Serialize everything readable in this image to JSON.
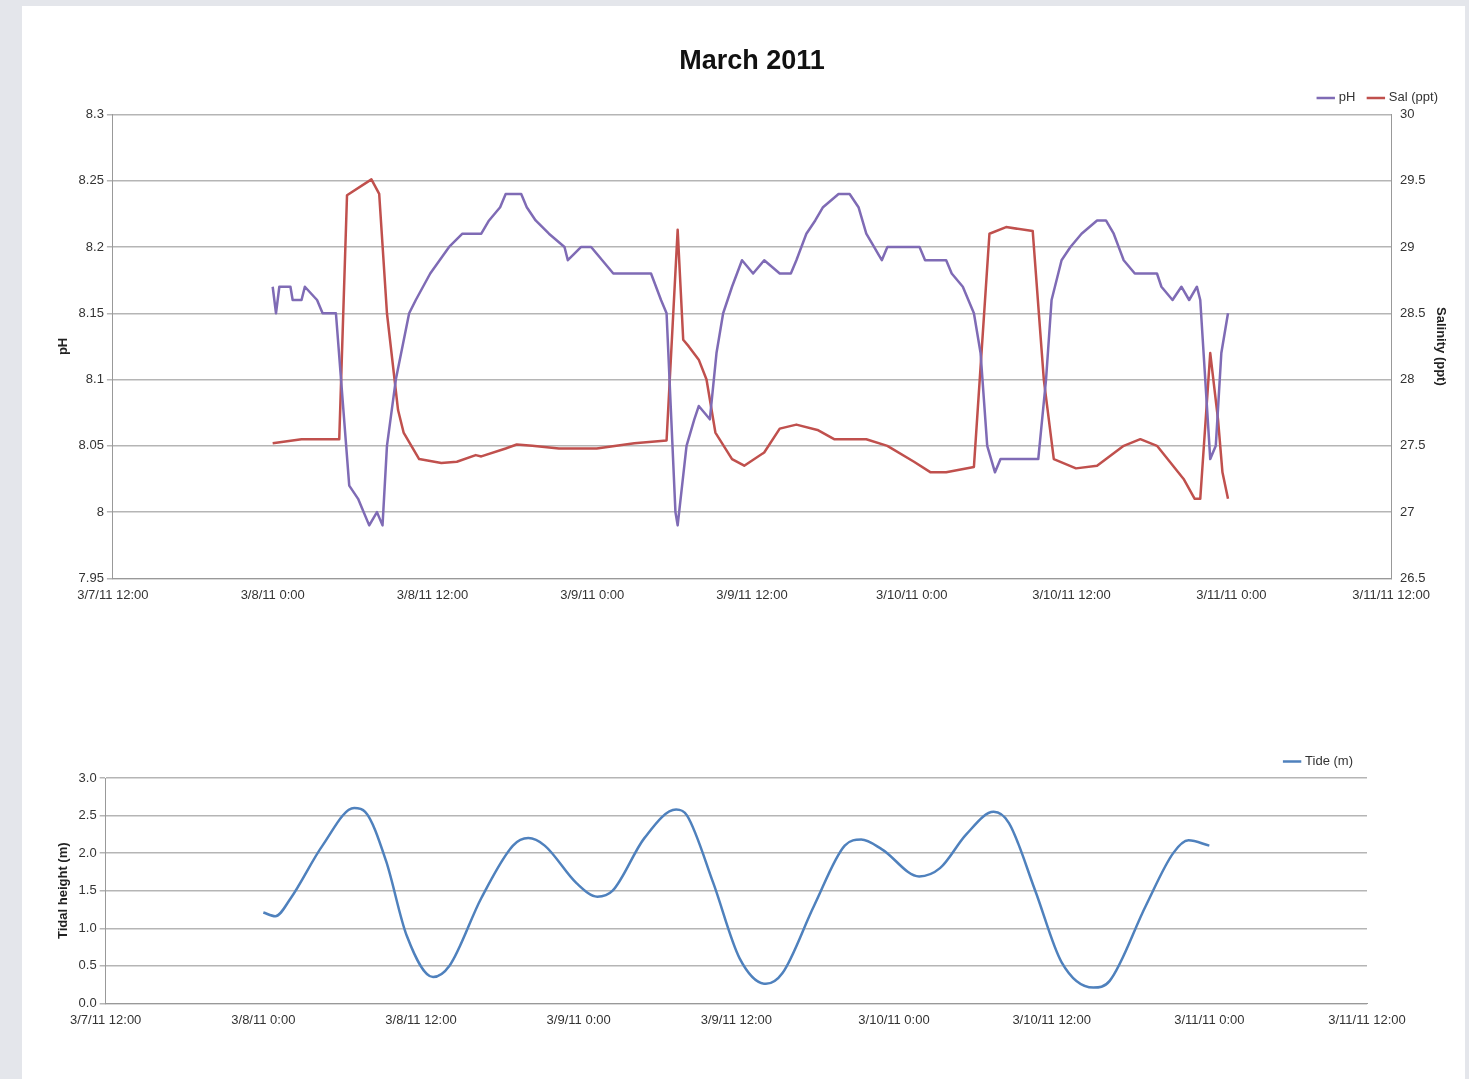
{
  "chart_data": [
    {
      "type": "line",
      "title": "March 2011",
      "ylabel": "pH",
      "y2label": "Salinity (ppt)",
      "legend": "top right",
      "grid": "y",
      "xlim": [
        "2011-03-07T12:00",
        "2011-03-11T12:00"
      ],
      "xticks": [
        {
          "value": "2011-03-07T12:00",
          "label": "3/7/11 12:00"
        },
        {
          "value": "2011-03-08T00:00",
          "label": "3/8/11 0:00"
        },
        {
          "value": "2011-03-08T12:00",
          "label": "3/8/11 12:00"
        },
        {
          "value": "2011-03-09T00:00",
          "label": "3/9/11 0:00"
        },
        {
          "value": "2011-03-09T12:00",
          "label": "3/9/11 12:00"
        },
        {
          "value": "2011-03-10T00:00",
          "label": "3/10/11 0:00"
        },
        {
          "value": "2011-03-10T12:00",
          "label": "3/10/11 12:00"
        },
        {
          "value": "2011-03-11T00:00",
          "label": "3/11/11 0:00"
        },
        {
          "value": "2011-03-11T12:00",
          "label": "3/11/11 12:00"
        }
      ],
      "ylim": [
        7.95,
        8.3
      ],
      "yticks": [
        7.95,
        8,
        8.05,
        8.1,
        8.15,
        8.2,
        8.25,
        8.3
      ],
      "y2lim": [
        26.5,
        30
      ],
      "y2ticks": [
        26.5,
        27,
        27.5,
        28,
        28.5,
        29,
        29.5,
        30
      ],
      "series": [
        {
          "name": "pH",
          "color": "#7f6bb5",
          "axis": "y",
          "x": [
            "2011-03-08T00:00",
            "2011-03-08T00:15",
            "2011-03-08T00:30",
            "2011-03-08T01:20",
            "2011-03-08T01:30",
            "2011-03-08T02:10",
            "2011-03-08T02:25",
            "2011-03-08T03:20",
            "2011-03-08T03:45",
            "2011-03-08T04:45",
            "2011-03-08T05:45",
            "2011-03-08T06:25",
            "2011-03-08T07:15",
            "2011-03-08T07:50",
            "2011-03-08T08:15",
            "2011-03-08T08:35",
            "2011-03-08T09:15",
            "2011-03-08T10:15",
            "2011-03-08T10:45",
            "2011-03-08T11:50",
            "2011-03-08T13:15",
            "2011-03-08T14:15",
            "2011-03-08T15:40",
            "2011-03-08T16:15",
            "2011-03-08T17:05",
            "2011-03-08T17:30",
            "2011-03-08T18:40",
            "2011-03-08T19:05",
            "2011-03-08T19:45",
            "2011-03-08T20:45",
            "2011-03-08T21:55",
            "2011-03-08T22:10",
            "2011-03-08T23:10",
            "2011-03-08T23:55",
            "2011-03-09T00:45",
            "2011-03-09T01:35",
            "2011-03-09T02:30",
            "2011-03-09T04:25",
            "2011-03-09T05:10",
            "2011-03-09T05:35",
            "2011-03-09T06:15",
            "2011-03-09T06:25",
            "2011-03-09T07:05",
            "2011-03-09T07:40",
            "2011-03-09T08:00",
            "2011-03-09T08:50",
            "2011-03-09T09:20",
            "2011-03-09T09:50",
            "2011-03-09T10:30",
            "2011-03-09T11:15",
            "2011-03-09T12:05",
            "2011-03-09T12:55",
            "2011-03-09T14:05",
            "2011-03-09T14:55",
            "2011-03-09T15:20",
            "2011-03-09T16:05",
            "2011-03-09T16:45",
            "2011-03-09T17:20",
            "2011-03-09T18:30",
            "2011-03-09T19:20",
            "2011-03-09T20:00",
            "2011-03-09T20:35",
            "2011-03-09T21:10",
            "2011-03-09T21:45",
            "2011-03-09T22:10",
            "2011-03-10T00:35",
            "2011-03-10T01:00",
            "2011-03-10T02:35",
            "2011-03-10T03:00",
            "2011-03-10T03:50",
            "2011-03-10T04:40",
            "2011-03-10T05:10",
            "2011-03-10T05:40",
            "2011-03-10T06:15",
            "2011-03-10T06:40",
            "2011-03-10T09:30",
            "2011-03-10T10:05",
            "2011-03-10T10:30",
            "2011-03-10T11:15",
            "2011-03-10T11:55",
            "2011-03-10T12:45",
            "2011-03-10T13:55",
            "2011-03-10T14:35",
            "2011-03-10T15:10",
            "2011-03-10T15:55",
            "2011-03-10T16:45",
            "2011-03-10T18:25",
            "2011-03-10T18:45",
            "2011-03-10T19:35",
            "2011-03-10T20:15",
            "2011-03-10T20:50",
            "2011-03-10T21:25",
            "2011-03-10T21:40",
            "2011-03-10T22:25",
            "2011-03-10T22:50",
            "2011-03-10T23:15",
            "2011-03-10T23:45"
          ],
          "values": [
            8.17,
            8.15,
            8.17,
            8.17,
            8.16,
            8.16,
            8.17,
            8.16,
            8.15,
            8.15,
            8.02,
            8.01,
            7.99,
            8,
            7.99,
            8.05,
            8.1,
            8.15,
            8.16,
            8.18,
            8.2,
            8.21,
            8.21,
            8.22,
            8.23,
            8.24,
            8.24,
            8.23,
            8.22,
            8.21,
            8.2,
            8.19,
            8.2,
            8.2,
            8.19,
            8.18,
            8.18,
            8.18,
            8.16,
            8.15,
            8,
            7.99,
            8.05,
            8.07,
            8.08,
            8.07,
            8.12,
            8.15,
            8.17,
            8.19,
            8.18,
            8.19,
            8.18,
            8.18,
            8.19,
            8.21,
            8.22,
            8.23,
            8.24,
            8.24,
            8.23,
            8.21,
            8.2,
            8.19,
            8.2,
            8.2,
            8.19,
            8.19,
            8.18,
            8.17,
            8.15,
            8.12,
            8.05,
            8.03,
            8.04,
            8.04,
            8.1,
            8.16,
            8.19,
            8.2,
            8.21,
            8.22,
            8.22,
            8.21,
            8.19,
            8.18,
            8.18,
            8.17,
            8.16,
            8.17,
            8.16,
            8.17,
            8.16,
            8.04,
            8.05,
            8.12,
            8.15
          ]
        },
        {
          "name": "Sal (ppt)",
          "color": "#c0504d",
          "axis": "y2",
          "x": [
            "2011-03-08T00:00",
            "2011-03-08T02:10",
            "2011-03-08T05:00",
            "2011-03-08T05:35",
            "2011-03-08T07:25",
            "2011-03-08T08:00",
            "2011-03-08T08:35",
            "2011-03-08T09:25",
            "2011-03-08T09:50",
            "2011-03-08T11:00",
            "2011-03-08T12:40",
            "2011-03-08T13:50",
            "2011-03-08T15:15",
            "2011-03-08T15:40",
            "2011-03-08T17:30",
            "2011-03-08T18:20",
            "2011-03-08T19:30",
            "2011-03-08T21:30",
            "2011-03-09T00:20",
            "2011-03-09T03:10",
            "2011-03-09T05:35",
            "2011-03-09T06:25",
            "2011-03-09T06:50",
            "2011-03-09T07:15",
            "2011-03-09T08:00",
            "2011-03-09T08:35",
            "2011-03-09T09:15",
            "2011-03-09T10:30",
            "2011-03-09T11:25",
            "2011-03-09T12:55",
            "2011-03-09T14:05",
            "2011-03-09T15:20",
            "2011-03-09T16:55",
            "2011-03-09T18:10",
            "2011-03-09T20:35",
            "2011-03-09T22:10",
            "2011-03-10T00:10",
            "2011-03-10T01:25",
            "2011-03-10T02:35",
            "2011-03-10T04:40",
            "2011-03-10T05:50",
            "2011-03-10T07:05",
            "2011-03-10T09:05",
            "2011-03-10T09:55",
            "2011-03-10T10:40",
            "2011-03-10T12:20",
            "2011-03-10T13:55",
            "2011-03-10T15:55",
            "2011-03-10T17:10",
            "2011-03-10T18:25",
            "2011-03-10T20:25",
            "2011-03-10T21:15",
            "2011-03-10T21:40",
            "2011-03-10T22:25",
            "2011-03-10T23:00",
            "2011-03-10T23:20",
            "2011-03-10T23:45"
          ],
          "values": [
            27.52,
            27.55,
            27.55,
            29.39,
            29.51,
            29.4,
            28.5,
            27.77,
            27.6,
            27.4,
            27.37,
            27.38,
            27.43,
            27.42,
            27.48,
            27.51,
            27.5,
            27.48,
            27.48,
            27.52,
            27.54,
            29.13,
            28.3,
            28.25,
            28.15,
            28,
            27.6,
            27.4,
            27.35,
            27.45,
            27.63,
            27.66,
            27.62,
            27.55,
            27.55,
            27.5,
            27.38,
            27.3,
            27.3,
            27.34,
            29.1,
            29.15,
            29.12,
            28,
            27.4,
            27.33,
            27.35,
            27.5,
            27.55,
            27.5,
            27.25,
            27.1,
            27.1,
            28.2,
            27.7,
            27.3,
            27.1
          ]
        }
      ]
    },
    {
      "type": "line",
      "ylabel": "Tidal height (m)",
      "legend": "top right",
      "grid": "y",
      "xlim": [
        "2011-03-07T12:00",
        "2011-03-11T12:00"
      ],
      "xticks": [
        {
          "value": "2011-03-07T12:00",
          "label": "3/7/11 12:00"
        },
        {
          "value": "2011-03-08T00:00",
          "label": "3/8/11 0:00"
        },
        {
          "value": "2011-03-08T12:00",
          "label": "3/8/11 12:00"
        },
        {
          "value": "2011-03-09T00:00",
          "label": "3/9/11 0:00"
        },
        {
          "value": "2011-03-09T12:00",
          "label": "3/9/11 12:00"
        },
        {
          "value": "2011-03-10T00:00",
          "label": "3/10/11 0:00"
        },
        {
          "value": "2011-03-10T12:00",
          "label": "3/10/11 12:00"
        },
        {
          "value": "2011-03-11T00:00",
          "label": "3/11/11 0:00"
        },
        {
          "value": "2011-03-11T12:00",
          "label": "3/11/11 12:00"
        }
      ],
      "ylim": [
        0,
        3
      ],
      "yticks": [
        {
          "value": 0,
          "label": "0.0"
        },
        {
          "value": 0.5,
          "label": "0.5"
        },
        {
          "value": 1,
          "label": "1.0"
        },
        {
          "value": 1.5,
          "label": "1.5"
        },
        {
          "value": 2,
          "label": "2.0"
        },
        {
          "value": 2.5,
          "label": "2.5"
        },
        {
          "value": 3,
          "label": "3.0"
        }
      ],
      "series": [
        {
          "name": "Tide (m)",
          "color": "#4f81bd",
          "x": [
            "2011-03-08T00:00",
            "2011-03-08T00:55",
            "2011-03-08T02:05",
            "2011-03-08T04:30",
            "2011-03-08T06:55",
            "2011-03-08T07:45",
            "2011-03-08T09:20",
            "2011-03-08T10:55",
            "2011-03-08T12:55",
            "2011-03-08T14:10",
            "2011-03-08T16:35",
            "2011-03-08T19:00",
            "2011-03-08T20:10",
            "2011-03-08T21:25",
            "2011-03-08T23:50",
            "2011-03-09T01:25",
            "2011-03-09T02:35",
            "2011-03-09T05:00",
            "2011-03-09T07:25",
            "2011-03-09T08:15",
            "2011-03-09T10:15",
            "2011-03-09T12:15",
            "2011-03-09T14:15",
            "2011-03-09T15:30",
            "2011-03-09T17:55",
            "2011-03-09T20:15",
            "2011-03-09T21:30",
            "2011-03-09T23:05",
            "2011-03-10T01:55",
            "2011-03-10T03:30",
            "2011-03-10T05:30",
            "2011-03-10T07:35",
            "2011-03-10T08:45",
            "2011-03-10T10:45",
            "2011-03-10T12:45",
            "2011-03-10T15:10",
            "2011-03-10T16:25",
            "2011-03-10T19:10",
            "2011-03-10T21:15",
            "2011-03-10T22:25",
            "2011-03-11T00:00"
          ],
          "values": [
            1.21,
            1.16,
            1.4,
            2.1,
            2.6,
            2.55,
            1.9,
            0.9,
            0.35,
            0.5,
            1.4,
            2.1,
            2.2,
            2.1,
            1.6,
            1.42,
            1.5,
            2.2,
            2.58,
            2.5,
            1.6,
            0.6,
            0.26,
            0.4,
            1.3,
            2.1,
            2.18,
            2.05,
            1.69,
            1.8,
            2.25,
            2.55,
            2.4,
            1.5,
            0.55,
            0.21,
            0.3,
            1.3,
            2,
            2.17,
            2.1
          ]
        }
      ]
    }
  ]
}
